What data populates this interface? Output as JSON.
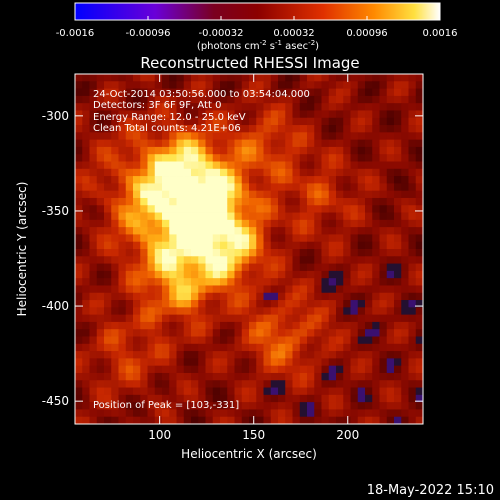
{
  "colorbar": {
    "ticks": [
      "-0.0016",
      "-0.00096",
      "-0.00032",
      "0.00032",
      "0.00096",
      "0.0016"
    ],
    "unit_main": "(photons cm",
    "unit_sup1": "-2",
    "unit_mid": " s",
    "unit_sup2": "-1",
    "unit_end": " asec",
    "unit_sup3": "-2",
    "unit_close": ")"
  },
  "annotations": {
    "time_range": "24-Oct-2014 03:50:56.000 to 03:54:04.000",
    "detectors": "Detectors: 3F 6F 9F, Att 0",
    "energy": "Energy Range: 12.0 - 25.0 keV",
    "clean": "Clean    Total counts: 4.21E+06",
    "peak": "Position of Peak = [103,-331]"
  },
  "footer": {
    "date": "18-May-2022 15:10"
  },
  "chart_data": {
    "type": "heatmap",
    "title": "Reconstructed RHESSI Image",
    "xlabel": "Heliocentric X (arcsec)",
    "ylabel": "Heliocentric Y (arcsec)",
    "x_ticks": [
      "100",
      "150",
      "200"
    ],
    "y_ticks": [
      "-300",
      "-350",
      "-400",
      "-450"
    ],
    "x_tick_values": [
      100,
      150,
      200
    ],
    "y_tick_values": [
      -300,
      -350,
      -400,
      -450
    ],
    "xlim": [
      55,
      240
    ],
    "ylim": [
      -462,
      -278
    ],
    "colorbar_range": [
      -0.0016,
      0.0016
    ],
    "colormap": "red-temperature with blue-purple negatives",
    "peak_position": [
      103,
      -331
    ],
    "colors": {
      "background": "#000000",
      "text": "#ffffff"
    }
  }
}
